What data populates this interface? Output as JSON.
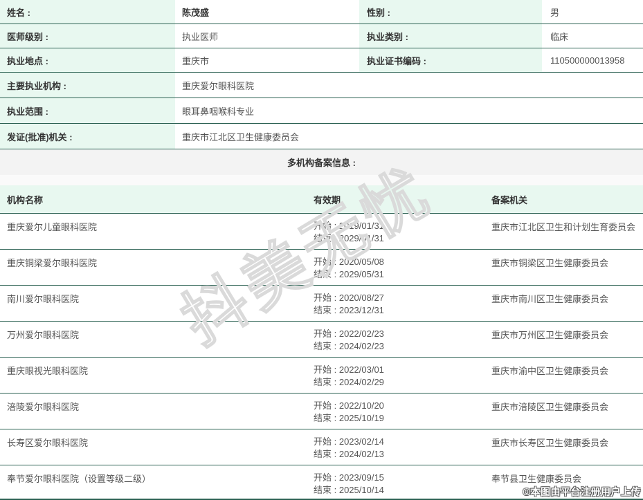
{
  "info": {
    "rows": [
      {
        "label": "姓名 :",
        "value": "陈茂盛",
        "label2": "性别 :",
        "value2": "男"
      },
      {
        "label": "医师级别 :",
        "value": "执业医师",
        "label2": "执业类别 :",
        "value2": "临床"
      },
      {
        "label": "执业地点 :",
        "value": "重庆市",
        "label2": "执业证书编码 :",
        "value2": "110500000013958"
      },
      {
        "label": "主要执业机构 :",
        "value": "重庆爱尔眼科医院"
      },
      {
        "label": "执业范围 :",
        "value": "眼耳鼻咽喉科专业"
      },
      {
        "label": "发证(批准)机关 :",
        "value": "重庆市江北区卫生健康委员会"
      }
    ]
  },
  "section": {
    "title": "多机构备案信息 :"
  },
  "table": {
    "headers": {
      "name": "机构名称",
      "validity": "有效期",
      "authority": "备案机关"
    },
    "start_prefix": "开始 : ",
    "end_prefix": "结束 : ",
    "rows": [
      {
        "name": "重庆爱尔儿童眼科医院",
        "start": "2019/01/31",
        "end": "2029/01/31",
        "authority": "重庆市江北区卫生和计划生育委员会"
      },
      {
        "name": "重庆铜梁爱尔眼科医院",
        "start": "2020/05/08",
        "end": "2029/05/31",
        "authority": "重庆市铜梁区卫生健康委员会"
      },
      {
        "name": "南川爱尔眼科医院",
        "start": "2020/08/27",
        "end": "2023/12/31",
        "authority": "重庆市南川区卫生健康委员会"
      },
      {
        "name": "万州爱尔眼科医院",
        "start": "2022/02/23",
        "end": "2024/02/23",
        "authority": "重庆市万州区卫生健康委员会"
      },
      {
        "name": "重庆眼视光眼科医院",
        "start": "2022/03/01",
        "end": "2024/02/29",
        "authority": "重庆市渝中区卫生健康委员会"
      },
      {
        "name": "涪陵爱尔眼科医院",
        "start": "2022/10/20",
        "end": "2025/10/19",
        "authority": "重庆市涪陵区卫生健康委员会"
      },
      {
        "name": "长寿区爱尔眼科医院",
        "start": "2023/02/14",
        "end": "2024/02/13",
        "authority": "重庆市长寿区卫生健康委员会"
      },
      {
        "name": "奉节爱尔眼科医院（设置等级二级）",
        "start": "2023/09/15",
        "end": "2025/10/14",
        "authority": "奉节县卫生健康委员会"
      }
    ]
  },
  "watermark": {
    "text": "抖美无忧"
  },
  "footer": {
    "note": "©本图由平台注册用户上传"
  },
  "colors": {
    "accent_border": "#2b6152",
    "label_bg": "#e8f8f0",
    "band_bg": "#f3f3f3"
  }
}
